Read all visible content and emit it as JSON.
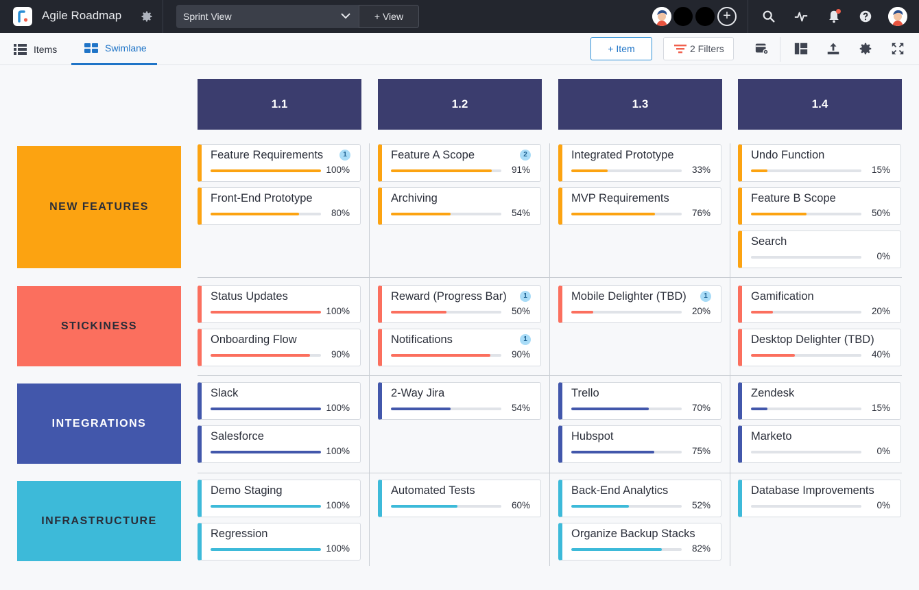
{
  "app": {
    "title": "Agile Roadmap"
  },
  "view": {
    "selected": "Sprint View",
    "add_label": "+ View"
  },
  "tabs": [
    {
      "label": "Items"
    },
    {
      "label": "Swimlane"
    }
  ],
  "toolbar": {
    "item_label": "+ Item",
    "filters_label": "2 Filters"
  },
  "colors": {
    "new_features": "#fca311",
    "stickiness": "#fb6f5e",
    "integrations": "#4257ab",
    "infrastructure": "#3dbad9",
    "column_header": "#3b3d6e",
    "accent": "#1f74c7"
  },
  "columns": [
    {
      "label": "1.1"
    },
    {
      "label": "1.2"
    },
    {
      "label": "1.3"
    },
    {
      "label": "1.4"
    }
  ],
  "lanes": [
    {
      "label": "NEW FEATURES"
    },
    {
      "label": "STICKINESS"
    },
    {
      "label": "INTEGRATIONS"
    },
    {
      "label": "INFRASTRUCTURE"
    }
  ],
  "cards": [
    {
      "lane": 0,
      "col": 0,
      "title": "Feature Requirements",
      "progress": 100,
      "pct": "100%",
      "badge": "1"
    },
    {
      "lane": 0,
      "col": 0,
      "title": "Front-End Prototype",
      "progress": 80,
      "pct": "80%"
    },
    {
      "lane": 0,
      "col": 1,
      "title": "Feature A Scope",
      "progress": 91,
      "pct": "91%",
      "badge": "2"
    },
    {
      "lane": 0,
      "col": 1,
      "title": "Archiving",
      "progress": 54,
      "pct": "54%"
    },
    {
      "lane": 0,
      "col": 2,
      "title": "Integrated Prototype",
      "progress": 33,
      "pct": "33%"
    },
    {
      "lane": 0,
      "col": 2,
      "title": "MVP Requirements",
      "progress": 76,
      "pct": "76%"
    },
    {
      "lane": 0,
      "col": 3,
      "title": "Undo Function",
      "progress": 15,
      "pct": "15%"
    },
    {
      "lane": 0,
      "col": 3,
      "title": "Feature B Scope",
      "progress": 50,
      "pct": "50%"
    },
    {
      "lane": 0,
      "col": 3,
      "title": "Search",
      "progress": 0,
      "pct": "0%"
    },
    {
      "lane": 1,
      "col": 0,
      "title": "Status Updates",
      "progress": 100,
      "pct": "100%"
    },
    {
      "lane": 1,
      "col": 0,
      "title": "Onboarding Flow",
      "progress": 90,
      "pct": "90%"
    },
    {
      "lane": 1,
      "col": 1,
      "title": "Reward (Progress Bar)",
      "progress": 50,
      "pct": "50%",
      "badge": "1"
    },
    {
      "lane": 1,
      "col": 1,
      "title": "Notifications",
      "progress": 90,
      "pct": "90%",
      "badge": "1"
    },
    {
      "lane": 1,
      "col": 2,
      "title": "Mobile Delighter (TBD)",
      "progress": 20,
      "pct": "20%",
      "badge": "1"
    },
    {
      "lane": 1,
      "col": 3,
      "title": "Gamification",
      "progress": 20,
      "pct": "20%"
    },
    {
      "lane": 1,
      "col": 3,
      "title": "Desktop Delighter (TBD)",
      "progress": 40,
      "pct": "40%"
    },
    {
      "lane": 2,
      "col": 0,
      "title": "Slack",
      "progress": 100,
      "pct": "100%"
    },
    {
      "lane": 2,
      "col": 0,
      "title": "Salesforce",
      "progress": 100,
      "pct": "100%"
    },
    {
      "lane": 2,
      "col": 1,
      "title": "2-Way Jira",
      "progress": 54,
      "pct": "54%"
    },
    {
      "lane": 2,
      "col": 2,
      "title": "Trello",
      "progress": 70,
      "pct": "70%"
    },
    {
      "lane": 2,
      "col": 2,
      "title": "Hubspot",
      "progress": 75,
      "pct": "75%"
    },
    {
      "lane": 2,
      "col": 3,
      "title": "Zendesk",
      "progress": 15,
      "pct": "15%"
    },
    {
      "lane": 2,
      "col": 3,
      "title": "Marketo",
      "progress": 0,
      "pct": "0%"
    },
    {
      "lane": 3,
      "col": 0,
      "title": "Demo Staging",
      "progress": 100,
      "pct": "100%"
    },
    {
      "lane": 3,
      "col": 0,
      "title": "Regression",
      "progress": 100,
      "pct": "100%"
    },
    {
      "lane": 3,
      "col": 1,
      "title": "Automated Tests",
      "progress": 60,
      "pct": "60%"
    },
    {
      "lane": 3,
      "col": 2,
      "title": "Back-End Analytics",
      "progress": 52,
      "pct": "52%"
    },
    {
      "lane": 3,
      "col": 2,
      "title": "Organize Backup Stacks",
      "progress": 82,
      "pct": "82%"
    },
    {
      "lane": 3,
      "col": 3,
      "title": "Database Improvements",
      "progress": 0,
      "pct": "0%"
    }
  ]
}
